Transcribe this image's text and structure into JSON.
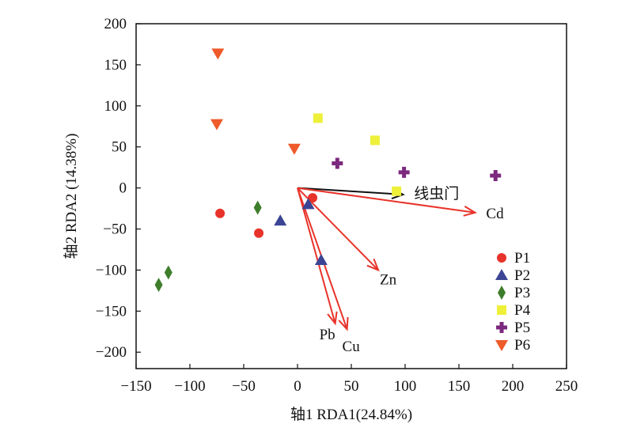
{
  "chart_data": {
    "type": "scatter",
    "xlabel": "轴1 RDA1(24.84%)",
    "ylabel": "轴2 RDA2 (14.38%)",
    "xlim": [
      -150,
      250
    ],
    "ylim": [
      -220,
      200
    ],
    "xticks": [
      -150,
      -100,
      -50,
      0,
      50,
      100,
      150,
      200,
      250
    ],
    "yticks": [
      -200,
      -150,
      -100,
      -50,
      0,
      50,
      100,
      150,
      200
    ],
    "xtick_labels": [
      "−150",
      "−100",
      "−50",
      "0",
      "50",
      "100",
      "150",
      "200",
      "250"
    ],
    "ytick_labels": [
      "−200",
      "−150",
      "−100",
      "−50",
      "0",
      "50",
      "100",
      "150",
      "200"
    ],
    "grid": false,
    "legend_position": "bottom-right",
    "series": [
      {
        "name": "P1",
        "marker": "circle",
        "color": "#e8332a",
        "points": [
          [
            -72,
            -31
          ],
          [
            -36,
            -55
          ],
          [
            14,
            -12
          ]
        ]
      },
      {
        "name": "P2",
        "marker": "triangle-up",
        "color": "#3b4594",
        "points": [
          [
            -16,
            -40
          ],
          [
            10,
            -20
          ],
          [
            22,
            -88
          ]
        ]
      },
      {
        "name": "P3",
        "marker": "diamond",
        "color": "#3d7d2c",
        "points": [
          [
            -37,
            -24
          ],
          [
            -120,
            -103
          ],
          [
            -129,
            -118
          ]
        ]
      },
      {
        "name": "P4",
        "marker": "square",
        "color": "#eef03a",
        "points": [
          [
            19,
            85
          ],
          [
            72,
            58
          ],
          [
            92,
            -4
          ]
        ]
      },
      {
        "name": "P5",
        "marker": "plus",
        "color": "#7b2a7e",
        "points": [
          [
            37,
            30
          ],
          [
            99,
            19
          ],
          [
            184,
            15
          ]
        ]
      },
      {
        "name": "P6",
        "marker": "triangle-down",
        "color": "#ee5a2a",
        "points": [
          [
            -74,
            164
          ],
          [
            -75,
            78
          ],
          [
            -3,
            48
          ]
        ]
      }
    ],
    "vectors": [
      {
        "label": "线虫门",
        "color": "#111111",
        "end": [
          98,
          -8
        ]
      },
      {
        "label": "Cd",
        "color": "#e8332a",
        "end": [
          165,
          -30
        ]
      },
      {
        "label": "Zn",
        "color": "#e8332a",
        "end": [
          75,
          -100
        ]
      },
      {
        "label": "Pb",
        "color": "#e8332a",
        "end": [
          35,
          -165
        ]
      },
      {
        "label": "Cu",
        "color": "#e8332a",
        "end": [
          46,
          -172
        ]
      }
    ]
  }
}
